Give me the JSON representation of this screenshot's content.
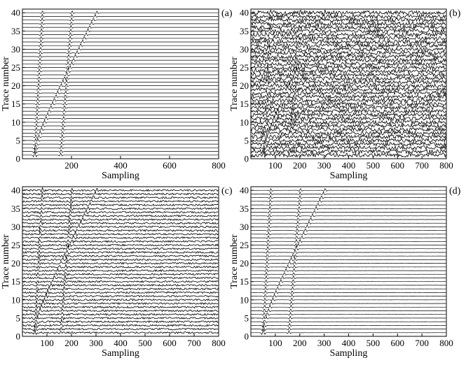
{
  "chart_data": [
    {
      "panel_label": "(a)",
      "type": "line",
      "content": "clean",
      "xlabel": "Sampling",
      "ylabel": "Trace number",
      "xlim": [
        0,
        800
      ],
      "ylim": [
        0,
        41
      ],
      "xticks": [
        200,
        400,
        600,
        800
      ],
      "yticks": [
        0,
        5,
        10,
        15,
        20,
        25,
        30,
        35,
        40
      ],
      "trace_count": 40,
      "noise_level": 0,
      "events": [
        {
          "t0": 50,
          "slope": 0.8,
          "shape": "line"
        },
        {
          "t0": 155,
          "slope": 1.2,
          "shape": "line"
        },
        {
          "t0": 50,
          "k": 0.15,
          "shape": "hyperbola"
        }
      ]
    },
    {
      "panel_label": "(b)",
      "type": "line",
      "content": "noisy",
      "xlabel": "Sampling",
      "ylabel": "Trace number",
      "xlim": [
        0,
        800
      ],
      "ylim": [
        0,
        41
      ],
      "xticks": [
        100,
        200,
        300,
        400,
        500,
        600,
        700,
        800
      ],
      "yticks": [
        0,
        5,
        10,
        15,
        20,
        25,
        30,
        35,
        40
      ],
      "trace_count": 40,
      "noise_level": 1.0,
      "events": [
        {
          "t0": 50,
          "slope": 0.8,
          "shape": "line"
        },
        {
          "t0": 155,
          "slope": 1.2,
          "shape": "line"
        },
        {
          "t0": 50,
          "k": 0.15,
          "shape": "hyperbola"
        }
      ]
    },
    {
      "panel_label": "(c)",
      "type": "line",
      "content": "partially denoised",
      "xlabel": "Sampling",
      "ylabel": "Trace number",
      "xlim": [
        0,
        800
      ],
      "ylim": [
        0,
        41
      ],
      "xticks": [
        100,
        200,
        300,
        400,
        500,
        600,
        700,
        800
      ],
      "yticks": [
        0,
        5,
        10,
        15,
        20,
        25,
        30,
        35,
        40
      ],
      "trace_count": 40,
      "noise_level": 0.45,
      "events": [
        {
          "t0": 50,
          "slope": 0.8,
          "shape": "line"
        },
        {
          "t0": 155,
          "slope": 1.2,
          "shape": "line"
        },
        {
          "t0": 50,
          "k": 0.15,
          "shape": "hyperbola"
        }
      ]
    },
    {
      "panel_label": "(d)",
      "type": "line",
      "content": "denoised",
      "xlabel": "Sampling",
      "ylabel": "Trace number",
      "xlim": [
        0,
        800
      ],
      "ylim": [
        0,
        41
      ],
      "xticks": [
        100,
        200,
        300,
        400,
        500,
        600,
        700,
        800
      ],
      "yticks": [
        0,
        5,
        10,
        15,
        20,
        25,
        30,
        35,
        40
      ],
      "trace_count": 40,
      "noise_level": 0.03,
      "events": [
        {
          "t0": 50,
          "slope": 0.8,
          "shape": "line"
        },
        {
          "t0": 155,
          "slope": 1.2,
          "shape": "line"
        },
        {
          "t0": 50,
          "k": 0.15,
          "shape": "hyperbola"
        }
      ]
    }
  ]
}
